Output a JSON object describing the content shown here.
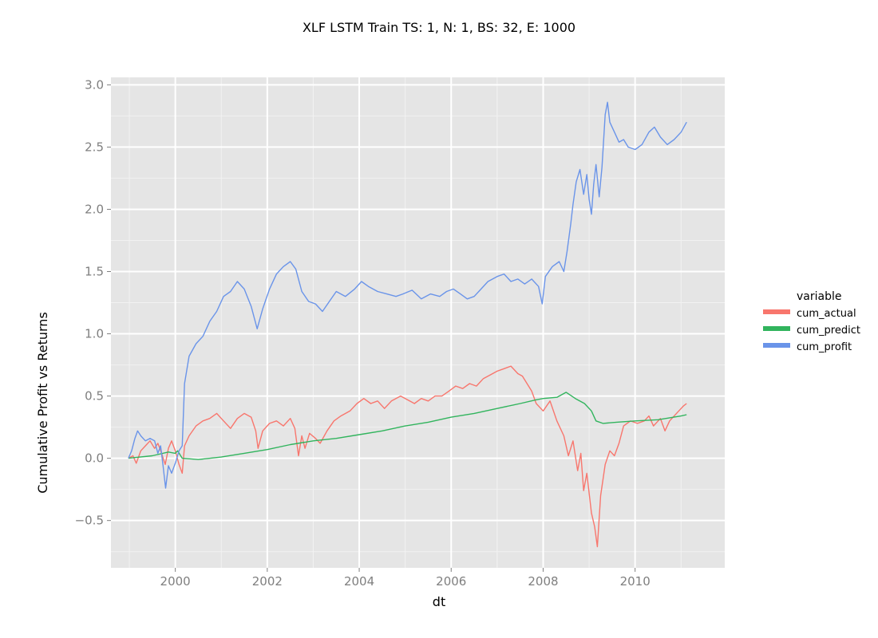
{
  "chart_data": {
    "type": "line",
    "title": "XLF LSTM Train TS: 1, N: 1, BS: 32, E: 1000",
    "xlabel": "dt",
    "ylabel": "Cumulative Profit vs Returns",
    "xlim": [
      1998.6,
      2011.95
    ],
    "ylim": [
      -0.88,
      3.06
    ],
    "x_ticks": [
      2000,
      2002,
      2004,
      2006,
      2008,
      2010
    ],
    "x_tick_labels": [
      "2000",
      "2002",
      "2004",
      "2006",
      "2008",
      "2010"
    ],
    "y_ticks": [
      -0.5,
      0.0,
      0.5,
      1.0,
      1.5,
      2.0,
      2.5,
      3.0
    ],
    "y_tick_labels": [
      "−0.5",
      "0.0",
      "0.5",
      "1.0",
      "1.5",
      "2.0",
      "2.5",
      "3.0"
    ],
    "grid": true,
    "legend": {
      "title": "variable",
      "position": "right"
    },
    "series": [
      {
        "name": "cum_actual",
        "color": "#f8766d",
        "points": [
          [
            1998.98,
            0.0
          ],
          [
            1999.08,
            0.02
          ],
          [
            1999.15,
            -0.04
          ],
          [
            1999.25,
            0.06
          ],
          [
            1999.35,
            0.1
          ],
          [
            1999.45,
            0.14
          ],
          [
            1999.55,
            0.08
          ],
          [
            1999.62,
            0.12
          ],
          [
            1999.7,
            0.04
          ],
          [
            1999.78,
            -0.05
          ],
          [
            1999.85,
            0.08
          ],
          [
            1999.92,
            0.14
          ],
          [
            2000.0,
            0.06
          ],
          [
            2000.08,
            -0.05
          ],
          [
            2000.15,
            -0.12
          ],
          [
            2000.2,
            0.1
          ],
          [
            2000.3,
            0.18
          ],
          [
            2000.45,
            0.26
          ],
          [
            2000.6,
            0.3
          ],
          [
            2000.75,
            0.32
          ],
          [
            2000.9,
            0.36
          ],
          [
            2001.05,
            0.3
          ],
          [
            2001.2,
            0.24
          ],
          [
            2001.35,
            0.32
          ],
          [
            2001.5,
            0.36
          ],
          [
            2001.65,
            0.33
          ],
          [
            2001.75,
            0.22
          ],
          [
            2001.8,
            0.08
          ],
          [
            2001.9,
            0.22
          ],
          [
            2002.05,
            0.28
          ],
          [
            2002.2,
            0.3
          ],
          [
            2002.35,
            0.26
          ],
          [
            2002.5,
            0.32
          ],
          [
            2002.6,
            0.24
          ],
          [
            2002.68,
            0.02
          ],
          [
            2002.75,
            0.18
          ],
          [
            2002.82,
            0.08
          ],
          [
            2002.92,
            0.2
          ],
          [
            2003.05,
            0.16
          ],
          [
            2003.15,
            0.12
          ],
          [
            2003.3,
            0.22
          ],
          [
            2003.45,
            0.3
          ],
          [
            2003.6,
            0.34
          ],
          [
            2003.8,
            0.38
          ],
          [
            2003.95,
            0.44
          ],
          [
            2004.1,
            0.48
          ],
          [
            2004.25,
            0.44
          ],
          [
            2004.4,
            0.46
          ],
          [
            2004.55,
            0.4
          ],
          [
            2004.7,
            0.46
          ],
          [
            2004.9,
            0.5
          ],
          [
            2005.05,
            0.47
          ],
          [
            2005.2,
            0.44
          ],
          [
            2005.35,
            0.48
          ],
          [
            2005.5,
            0.46
          ],
          [
            2005.65,
            0.5
          ],
          [
            2005.8,
            0.5
          ],
          [
            2005.95,
            0.54
          ],
          [
            2006.1,
            0.58
          ],
          [
            2006.25,
            0.56
          ],
          [
            2006.4,
            0.6
          ],
          [
            2006.55,
            0.58
          ],
          [
            2006.7,
            0.64
          ],
          [
            2006.85,
            0.67
          ],
          [
            2007.0,
            0.7
          ],
          [
            2007.15,
            0.72
          ],
          [
            2007.3,
            0.74
          ],
          [
            2007.45,
            0.68
          ],
          [
            2007.55,
            0.66
          ],
          [
            2007.65,
            0.6
          ],
          [
            2007.75,
            0.54
          ],
          [
            2007.85,
            0.44
          ],
          [
            2008.0,
            0.38
          ],
          [
            2008.15,
            0.46
          ],
          [
            2008.3,
            0.3
          ],
          [
            2008.45,
            0.18
          ],
          [
            2008.55,
            0.02
          ],
          [
            2008.65,
            0.14
          ],
          [
            2008.75,
            -0.1
          ],
          [
            2008.82,
            0.04
          ],
          [
            2008.88,
            -0.26
          ],
          [
            2008.95,
            -0.12
          ],
          [
            2009.05,
            -0.44
          ],
          [
            2009.12,
            -0.55
          ],
          [
            2009.18,
            -0.71
          ],
          [
            2009.25,
            -0.3
          ],
          [
            2009.35,
            -0.05
          ],
          [
            2009.45,
            0.06
          ],
          [
            2009.55,
            0.02
          ],
          [
            2009.65,
            0.12
          ],
          [
            2009.75,
            0.26
          ],
          [
            2009.9,
            0.3
          ],
          [
            2010.05,
            0.28
          ],
          [
            2010.2,
            0.3
          ],
          [
            2010.3,
            0.34
          ],
          [
            2010.4,
            0.26
          ],
          [
            2010.55,
            0.32
          ],
          [
            2010.65,
            0.22
          ],
          [
            2010.75,
            0.3
          ],
          [
            2010.85,
            0.34
          ],
          [
            2010.95,
            0.38
          ],
          [
            2011.05,
            0.42
          ],
          [
            2011.12,
            0.44
          ]
        ]
      },
      {
        "name": "cum_predict",
        "color": "#31b45d",
        "points": [
          [
            1998.98,
            0.0
          ],
          [
            1999.5,
            0.02
          ],
          [
            1999.85,
            0.05
          ],
          [
            2000.0,
            0.04
          ],
          [
            2000.05,
            0.06
          ],
          [
            2000.15,
            0.0
          ],
          [
            2000.5,
            -0.01
          ],
          [
            2001.0,
            0.01
          ],
          [
            2001.5,
            0.04
          ],
          [
            2002.0,
            0.07
          ],
          [
            2002.5,
            0.11
          ],
          [
            2003.0,
            0.14
          ],
          [
            2003.5,
            0.16
          ],
          [
            2004.0,
            0.19
          ],
          [
            2004.5,
            0.22
          ],
          [
            2005.0,
            0.26
          ],
          [
            2005.5,
            0.29
          ],
          [
            2006.0,
            0.33
          ],
          [
            2006.5,
            0.36
          ],
          [
            2007.0,
            0.4
          ],
          [
            2007.5,
            0.44
          ],
          [
            2007.85,
            0.47
          ],
          [
            2008.0,
            0.48
          ],
          [
            2008.3,
            0.49
          ],
          [
            2008.5,
            0.53
          ],
          [
            2008.7,
            0.48
          ],
          [
            2008.9,
            0.44
          ],
          [
            2009.05,
            0.38
          ],
          [
            2009.15,
            0.3
          ],
          [
            2009.3,
            0.28
          ],
          [
            2009.6,
            0.29
          ],
          [
            2010.0,
            0.3
          ],
          [
            2010.5,
            0.31
          ],
          [
            2011.0,
            0.34
          ],
          [
            2011.12,
            0.35
          ]
        ]
      },
      {
        "name": "cum_profit",
        "color": "#6a94e9",
        "points": [
          [
            1998.98,
            0.0
          ],
          [
            1999.05,
            0.06
          ],
          [
            1999.12,
            0.16
          ],
          [
            1999.18,
            0.22
          ],
          [
            1999.25,
            0.18
          ],
          [
            1999.35,
            0.14
          ],
          [
            1999.45,
            0.16
          ],
          [
            1999.55,
            0.14
          ],
          [
            1999.62,
            0.04
          ],
          [
            1999.68,
            0.1
          ],
          [
            1999.73,
            -0.05
          ],
          [
            1999.79,
            -0.24
          ],
          [
            1999.85,
            -0.06
          ],
          [
            1999.92,
            -0.12
          ],
          [
            2000.0,
            -0.04
          ],
          [
            2000.08,
            0.06
          ],
          [
            2000.15,
            0.1
          ],
          [
            2000.2,
            0.6
          ],
          [
            2000.3,
            0.82
          ],
          [
            2000.45,
            0.92
          ],
          [
            2000.6,
            0.98
          ],
          [
            2000.75,
            1.1
          ],
          [
            2000.9,
            1.18
          ],
          [
            2001.05,
            1.3
          ],
          [
            2001.2,
            1.34
          ],
          [
            2001.35,
            1.42
          ],
          [
            2001.5,
            1.36
          ],
          [
            2001.65,
            1.22
          ],
          [
            2001.78,
            1.04
          ],
          [
            2001.9,
            1.2
          ],
          [
            2002.05,
            1.36
          ],
          [
            2002.2,
            1.48
          ],
          [
            2002.35,
            1.54
          ],
          [
            2002.5,
            1.58
          ],
          [
            2002.62,
            1.52
          ],
          [
            2002.75,
            1.34
          ],
          [
            2002.9,
            1.26
          ],
          [
            2003.05,
            1.24
          ],
          [
            2003.2,
            1.18
          ],
          [
            2003.35,
            1.26
          ],
          [
            2003.5,
            1.34
          ],
          [
            2003.7,
            1.3
          ],
          [
            2003.9,
            1.36
          ],
          [
            2004.05,
            1.42
          ],
          [
            2004.2,
            1.38
          ],
          [
            2004.4,
            1.34
          ],
          [
            2004.6,
            1.32
          ],
          [
            2004.8,
            1.3
          ],
          [
            2004.95,
            1.32
          ],
          [
            2005.15,
            1.35
          ],
          [
            2005.35,
            1.28
          ],
          [
            2005.55,
            1.32
          ],
          [
            2005.75,
            1.3
          ],
          [
            2005.9,
            1.34
          ],
          [
            2006.05,
            1.36
          ],
          [
            2006.2,
            1.32
          ],
          [
            2006.35,
            1.28
          ],
          [
            2006.5,
            1.3
          ],
          [
            2006.65,
            1.36
          ],
          [
            2006.8,
            1.42
          ],
          [
            2007.0,
            1.46
          ],
          [
            2007.15,
            1.48
          ],
          [
            2007.3,
            1.42
          ],
          [
            2007.45,
            1.44
          ],
          [
            2007.6,
            1.4
          ],
          [
            2007.75,
            1.44
          ],
          [
            2007.9,
            1.38
          ],
          [
            2007.98,
            1.24
          ],
          [
            2008.05,
            1.46
          ],
          [
            2008.2,
            1.54
          ],
          [
            2008.35,
            1.58
          ],
          [
            2008.45,
            1.5
          ],
          [
            2008.52,
            1.66
          ],
          [
            2008.6,
            1.88
          ],
          [
            2008.65,
            2.04
          ],
          [
            2008.72,
            2.22
          ],
          [
            2008.8,
            2.32
          ],
          [
            2008.88,
            2.12
          ],
          [
            2008.95,
            2.28
          ],
          [
            2009.0,
            2.08
          ],
          [
            2009.05,
            1.96
          ],
          [
            2009.1,
            2.2
          ],
          [
            2009.15,
            2.36
          ],
          [
            2009.22,
            2.1
          ],
          [
            2009.28,
            2.34
          ],
          [
            2009.35,
            2.76
          ],
          [
            2009.4,
            2.86
          ],
          [
            2009.45,
            2.7
          ],
          [
            2009.55,
            2.62
          ],
          [
            2009.65,
            2.54
          ],
          [
            2009.75,
            2.56
          ],
          [
            2009.85,
            2.5
          ],
          [
            2010.0,
            2.48
          ],
          [
            2010.15,
            2.52
          ],
          [
            2010.3,
            2.62
          ],
          [
            2010.42,
            2.66
          ],
          [
            2010.55,
            2.58
          ],
          [
            2010.7,
            2.52
          ],
          [
            2010.85,
            2.56
          ],
          [
            2011.0,
            2.62
          ],
          [
            2011.12,
            2.7
          ]
        ]
      }
    ]
  }
}
